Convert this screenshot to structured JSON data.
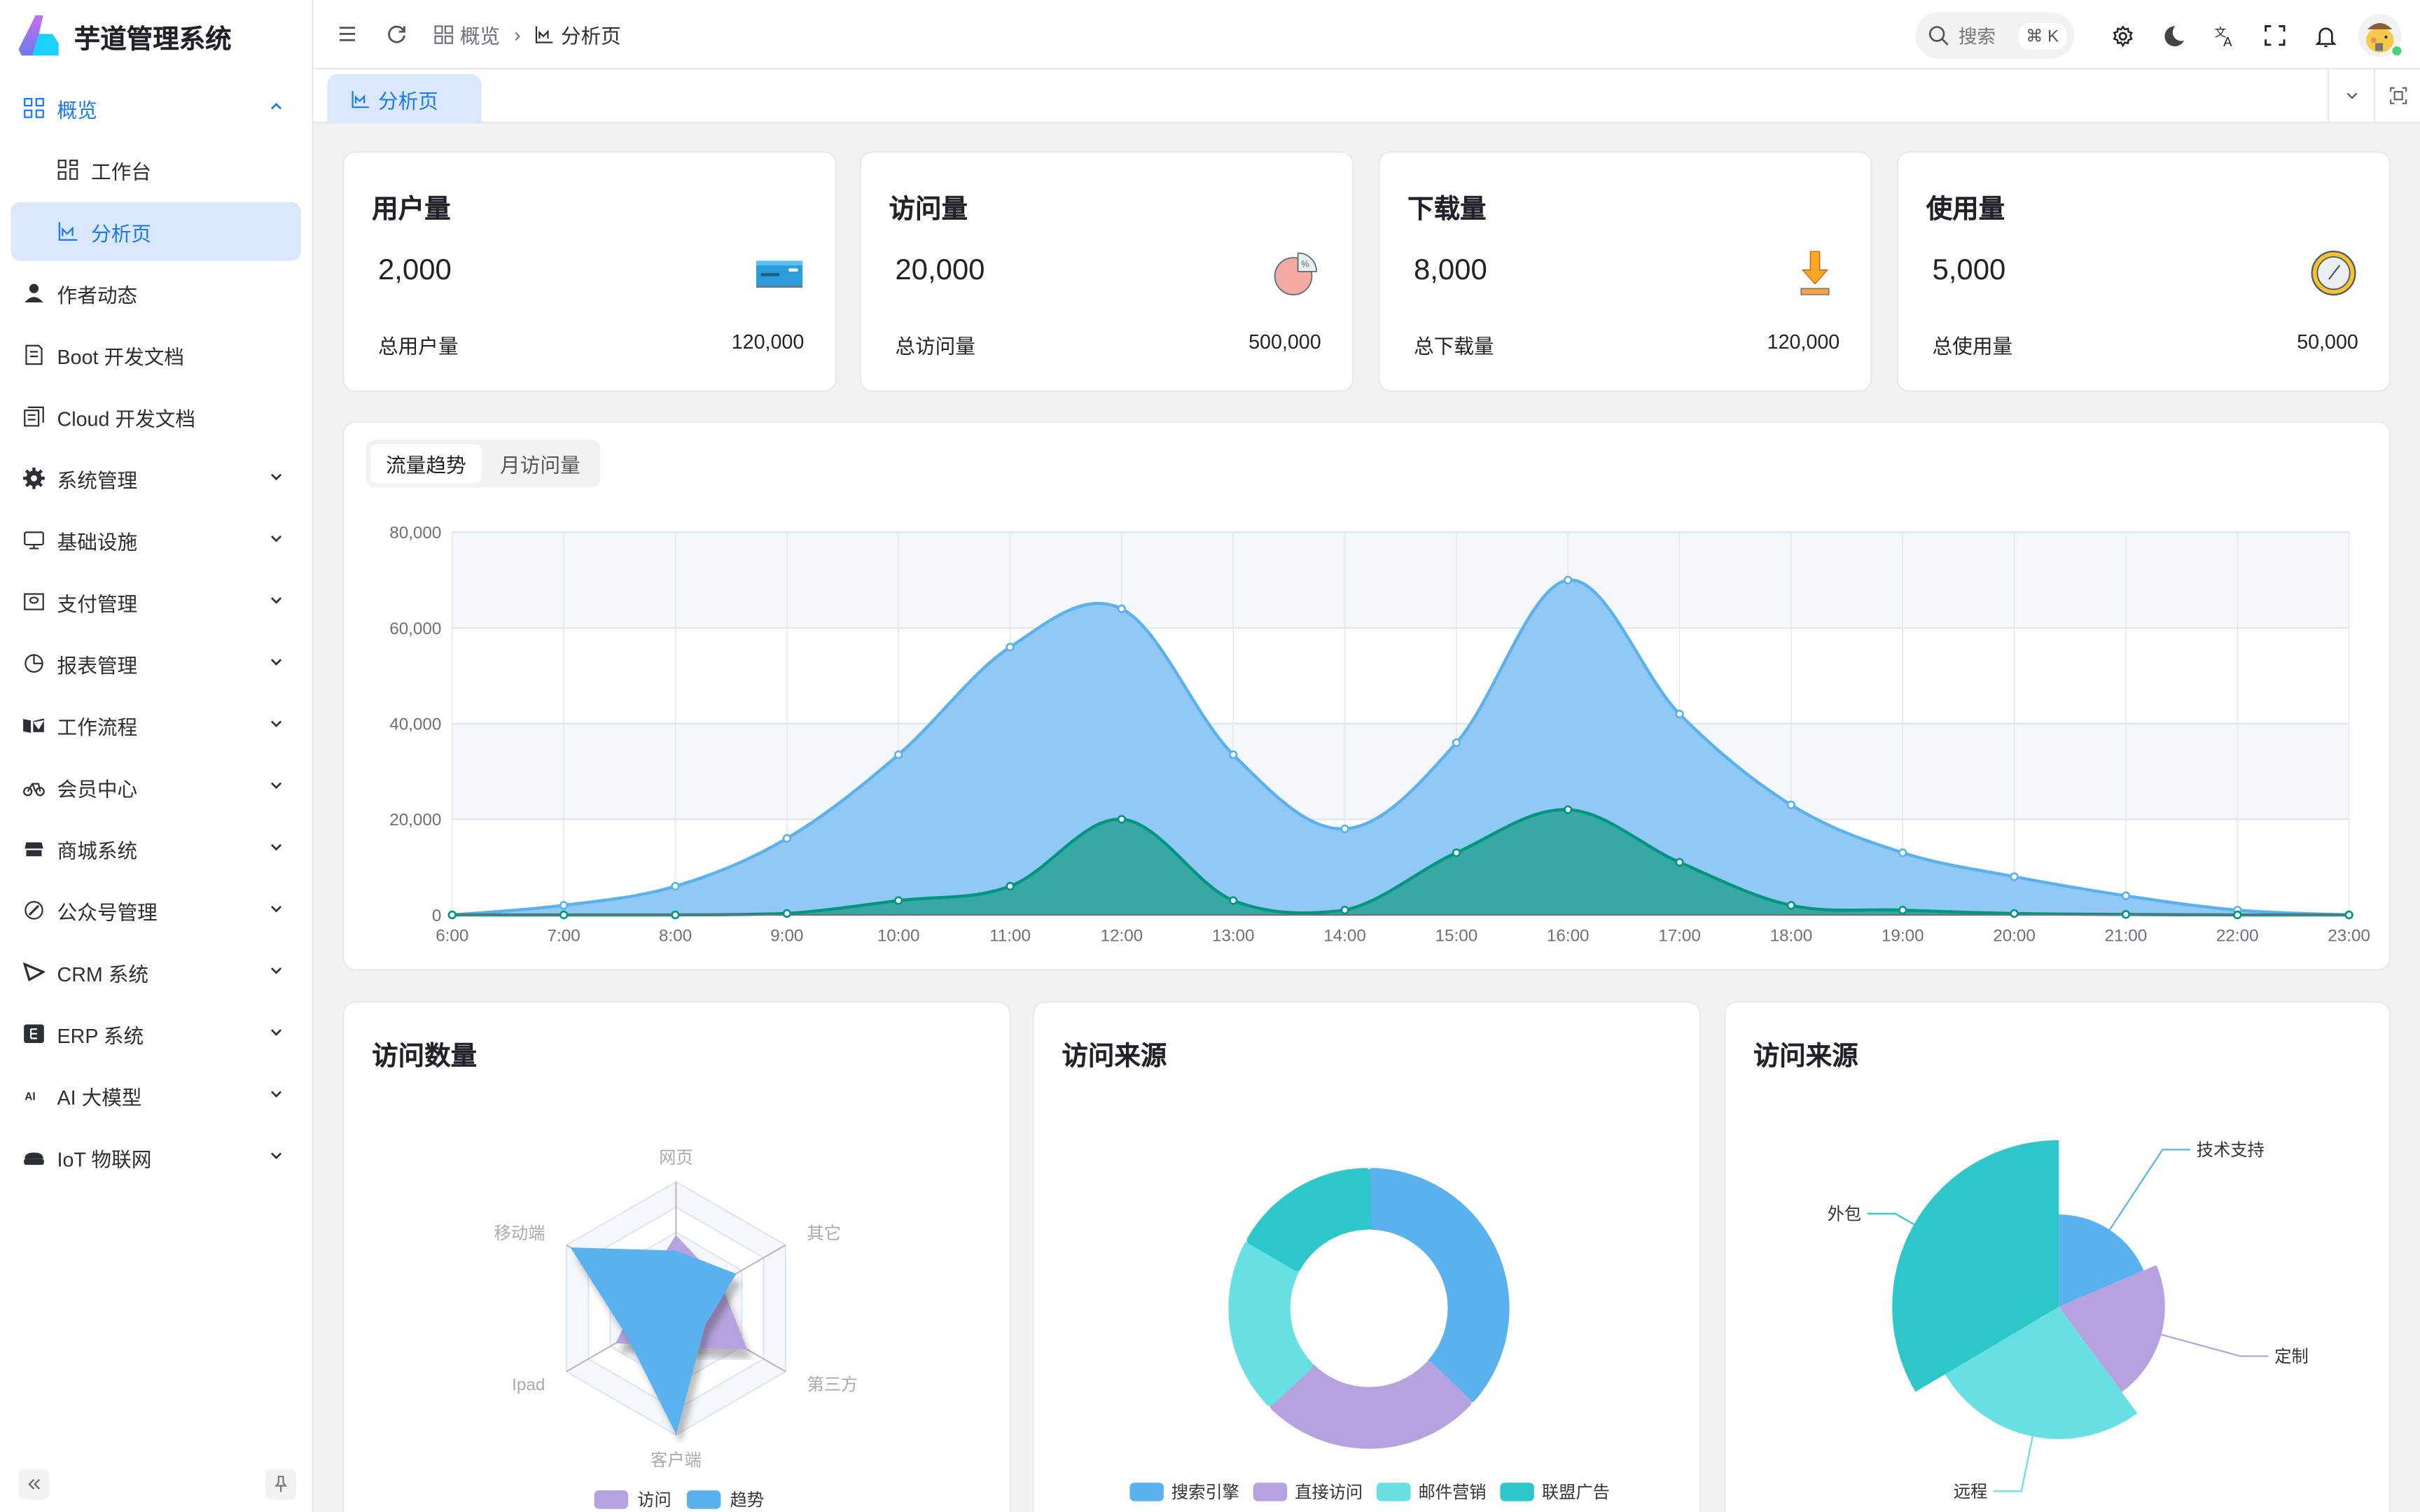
{
  "app": {
    "title": "芋道管理系统"
  },
  "sidebar": {
    "items": [
      {
        "label": "概览",
        "icon": "dashboard-icon",
        "expanded": true,
        "level": 0,
        "state": "top-active"
      },
      {
        "label": "工作台",
        "icon": "workspace-icon",
        "level": 1
      },
      {
        "label": "分析页",
        "icon": "chart-icon",
        "level": 1,
        "state": "active"
      },
      {
        "label": "作者动态",
        "icon": "user-icon",
        "level": 0
      },
      {
        "label": "Boot 开发文档",
        "icon": "document-icon",
        "level": 0
      },
      {
        "label": "Cloud 开发文档",
        "icon": "documents-icon",
        "level": 0
      },
      {
        "label": "系统管理",
        "icon": "gear-icon",
        "level": 0,
        "chevron": true
      },
      {
        "label": "基础设施",
        "icon": "monitor-icon",
        "level": 0,
        "chevron": true
      },
      {
        "label": "支付管理",
        "icon": "payment-icon",
        "level": 0,
        "chevron": true
      },
      {
        "label": "报表管理",
        "icon": "pie-chart-icon",
        "level": 0,
        "chevron": true
      },
      {
        "label": "工作流程",
        "icon": "workflow-icon",
        "level": 0,
        "chevron": true
      },
      {
        "label": "会员中心",
        "icon": "bicycle-icon",
        "level": 0,
        "chevron": true
      },
      {
        "label": "商城系统",
        "icon": "shop-icon",
        "level": 0,
        "chevron": true
      },
      {
        "label": "公众号管理",
        "icon": "compass-icon",
        "level": 0,
        "chevron": true
      },
      {
        "label": "CRM 系统",
        "icon": "crm-icon",
        "level": 0,
        "chevron": true
      },
      {
        "label": "ERP 系统",
        "icon": "erp-icon",
        "level": 0,
        "chevron": true
      },
      {
        "label": "AI 大模型",
        "icon": "ai-icon",
        "level": 0,
        "chevron": true
      },
      {
        "label": "IoT 物联网",
        "icon": "iot-icon",
        "level": 0,
        "chevron": true
      }
    ]
  },
  "header": {
    "breadcrumb": [
      {
        "label": "概览",
        "icon": "dashboard-icon"
      },
      {
        "label": "分析页",
        "icon": "chart-icon"
      }
    ],
    "search_placeholder": "搜索",
    "search_shortcut": "⌘ K"
  },
  "tabs": [
    {
      "label": "分析页",
      "icon": "chart-icon",
      "active": true
    }
  ],
  "stats": [
    {
      "title": "用户量",
      "value": "2,000",
      "icon": "credit-card-icon",
      "total_label": "总用户量",
      "total": "120,000"
    },
    {
      "title": "访问量",
      "value": "20,000",
      "icon": "pie-chart-icon",
      "total_label": "总访问量",
      "total": "500,000"
    },
    {
      "title": "下载量",
      "value": "8,000",
      "icon": "download-icon",
      "total_label": "总下载量",
      "total": "120,000"
    },
    {
      "title": "使用量",
      "value": "5,000",
      "icon": "clock-icon",
      "total_label": "总使用量",
      "total": "50,000"
    }
  ],
  "trend": {
    "tabs": [
      "流量趋势",
      "月访问量"
    ],
    "active_tab": 0
  },
  "bottom": {
    "visits_title": "访问数量",
    "source_title": "访问来源",
    "source2_title": "访问来源"
  },
  "chart_data": [
    {
      "type": "area",
      "categories": [
        "6:00",
        "7:00",
        "8:00",
        "9:00",
        "10:00",
        "11:00",
        "12:00",
        "13:00",
        "14:00",
        "15:00",
        "16:00",
        "17:00",
        "18:00",
        "19:00",
        "20:00",
        "21:00",
        "22:00",
        "23:00"
      ],
      "yticks": [
        "0",
        "20,000",
        "40,000",
        "60,000",
        "80,000"
      ],
      "ylim": [
        0,
        80000
      ],
      "grid": true,
      "smooth": true,
      "series": [
        {
          "values": [
            0,
            2000,
            6000,
            16000,
            33500,
            56000,
            64000,
            33500,
            18000,
            36000,
            70000,
            42000,
            23000,
            13000,
            8000,
            4000,
            1000,
            0
          ],
          "color": "#5ab1ef",
          "fill": "#8cc5f3"
        },
        {
          "values": [
            0,
            0,
            0,
            300,
            3000,
            6000,
            20000,
            3000,
            1000,
            13000,
            22000,
            11000,
            2000,
            1000,
            300,
            100,
            0,
            0
          ],
          "color": "#019680",
          "fill": "#33a6a0"
        }
      ]
    },
    {
      "type": "radar",
      "indicators": [
        "网页",
        "其它",
        "第三方",
        "客户端",
        "Ipad",
        "移动端"
      ],
      "max": 100,
      "series": [
        {
          "name": "访问",
          "values": [
            57,
            40,
            64,
            30,
            54,
            30
          ],
          "color": "#b6a2de"
        },
        {
          "name": "趋势",
          "values": [
            45,
            54,
            26,
            98,
            44,
            95
          ],
          "color": "#5ab1ef"
        }
      ]
    },
    {
      "type": "pie",
      "variant": "donut",
      "series": [
        {
          "name": "搜索引擎",
          "value": 1048,
          "color": "#5ab1ef"
        },
        {
          "name": "直接访问",
          "value": 735,
          "color": "#b6a2de"
        },
        {
          "name": "邮件营销",
          "value": 580,
          "color": "#67e0e3"
        },
        {
          "name": "联盟广告",
          "value": 484,
          "color": "#2ec7c9"
        }
      ],
      "legend": "bottom"
    },
    {
      "type": "pie",
      "variant": "rose",
      "series": [
        {
          "name": "技术支持",
          "value": 335,
          "color": "#5ab1ef"
        },
        {
          "name": "定制",
          "value": 385,
          "color": "#b6a2de"
        },
        {
          "name": "远程",
          "value": 480,
          "color": "#67e0e3"
        },
        {
          "name": "外包",
          "value": 605,
          "color": "#2ec7c9"
        }
      ]
    }
  ],
  "colors": {
    "accent": "#1677ff",
    "active_bg": "#dbe8fb",
    "page_bg": "#f1f2f4"
  }
}
